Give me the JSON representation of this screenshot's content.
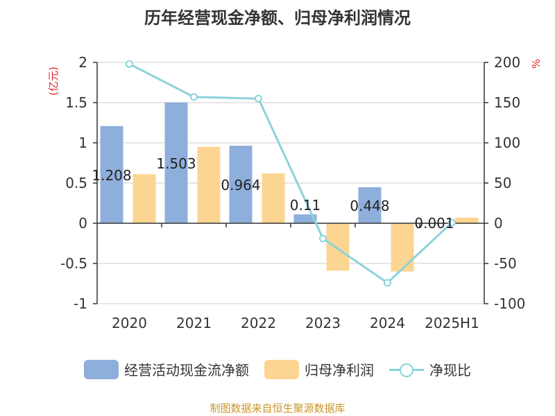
{
  "chart_data": {
    "type": "bar",
    "title": "历年经营现金净额、归母净利润情况",
    "categories": [
      "2020",
      "2021",
      "2022",
      "2023",
      "2024",
      "2025H1"
    ],
    "left_axis": {
      "unit": "(亿元)",
      "ylim": [
        -1,
        2
      ],
      "ticks": [
        "2",
        "1.5",
        "1",
        "0.5",
        "0",
        "-0.5",
        "-1"
      ],
      "tick_values": [
        2,
        1.5,
        1,
        0.5,
        0,
        -0.5,
        -1
      ]
    },
    "right_axis": {
      "unit": "%",
      "ylim": [
        -100,
        200
      ],
      "ticks": [
        "200",
        "150",
        "100",
        "50",
        "0",
        "-50",
        "-100"
      ],
      "tick_values": [
        200,
        150,
        100,
        50,
        0,
        -50,
        -100
      ]
    },
    "series": [
      {
        "name": "经营活动现金流净额",
        "type": "bar",
        "axis": "left",
        "color": "#8eaedb",
        "values": [
          1.208,
          1.503,
          0.964,
          0.11,
          0.448,
          0.001
        ],
        "labels": [
          "1.208",
          "1.503",
          "0.964",
          "0.11",
          "0.448",
          "0.001"
        ]
      },
      {
        "name": "归母净利润",
        "type": "bar",
        "axis": "left",
        "color": "#fdd592",
        "values": [
          0.61,
          0.95,
          0.62,
          -0.59,
          -0.6,
          0.07
        ]
      },
      {
        "name": "净现比",
        "type": "line",
        "axis": "right",
        "color": "#8ad3d9",
        "values": [
          198,
          157,
          155,
          -19,
          -74,
          1
        ]
      }
    ],
    "grid": true,
    "legend_position": "bottom"
  },
  "legend": {
    "cash_flow": "经营活动现金流净额",
    "net_profit": "归母净利润",
    "ratio": "净现比"
  },
  "source": "制图数据来自恒生聚源数据库"
}
